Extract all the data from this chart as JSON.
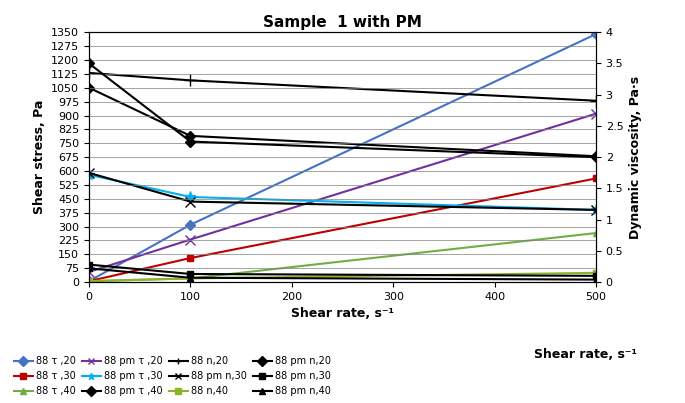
{
  "title": "Sample  1 with PM",
  "xlabel": "Shear rate, s⁻¹",
  "ylabel_left": "Shear stress, Pa",
  "ylabel_right": "Dynamic viscosity, Pa·s",
  "ylim_left": [
    0,
    1350
  ],
  "ylim_right": [
    0,
    4
  ],
  "yticks_left": [
    0,
    75,
    150,
    225,
    300,
    375,
    450,
    525,
    600,
    675,
    750,
    825,
    900,
    975,
    1050,
    1125,
    1200,
    1275,
    1350
  ],
  "yticks_right": [
    0,
    0.5,
    1.0,
    1.5,
    2.0,
    2.5,
    3.0,
    3.5,
    4.0
  ],
  "xticks": [
    0,
    100,
    200,
    300,
    400,
    500
  ],
  "xlim": [
    0,
    500
  ],
  "series": [
    {
      "label": "88 τ ,20",
      "x": [
        0,
        100,
        500
      ],
      "y": [
        5,
        310,
        1340
      ],
      "color": "#4472C4",
      "marker": "D",
      "markersize": 5,
      "linewidth": 1.5,
      "axis": "left"
    },
    {
      "label": "88 τ ,30",
      "x": [
        0,
        100,
        500
      ],
      "y": [
        5,
        130,
        560
      ],
      "color": "#C00000",
      "marker": "s",
      "markersize": 5,
      "linewidth": 1.5,
      "axis": "left"
    },
    {
      "label": "88 τ ,40",
      "x": [
        0,
        100,
        500
      ],
      "y": [
        5,
        20,
        265
      ],
      "color": "#70AD47",
      "marker": "^",
      "markersize": 5,
      "linewidth": 1.5,
      "axis": "left"
    },
    {
      "label": "88 pm τ ,20",
      "x": [
        0,
        100,
        500
      ],
      "y": [
        55,
        230,
        910
      ],
      "color": "#7030A0",
      "marker": "x",
      "markersize": 7,
      "linewidth": 1.5,
      "axis": "left"
    },
    {
      "label": "88 pm τ ,30",
      "x": [
        0,
        100,
        500
      ],
      "y": [
        580,
        460,
        390
      ],
      "color": "#00B0F0",
      "marker": "*",
      "markersize": 8,
      "linewidth": 1.5,
      "axis": "left"
    },
    {
      "label": "88 pm τ ,40",
      "x": [
        0,
        100,
        500
      ],
      "y": [
        1050,
        790,
        680
      ],
      "color": "#000000",
      "marker": "D",
      "markersize": 5,
      "linewidth": 1.5,
      "axis": "left"
    },
    {
      "label": "88 n,20",
      "x": [
        0,
        100,
        500
      ],
      "y": [
        1130,
        1090,
        980
      ],
      "color": "#000000",
      "marker": "+",
      "markersize": 8,
      "linewidth": 1.5,
      "axis": "left"
    },
    {
      "label": "88 pm n,30",
      "x": [
        0,
        100,
        500
      ],
      "y": [
        590,
        435,
        390
      ],
      "color": "#000000",
      "marker": "x",
      "markersize": 7,
      "linewidth": 1.5,
      "axis": "left"
    },
    {
      "label": "88 n,40",
      "x": [
        0,
        100,
        500
      ],
      "y": [
        5,
        20,
        50
      ],
      "color": "#8DB32A",
      "marker": "s",
      "markersize": 5,
      "linewidth": 1.5,
      "axis": "left"
    },
    {
      "label": "88 pm n,20",
      "x": [
        0,
        100,
        500
      ],
      "y": [
        3.5,
        2.25,
        2.0
      ],
      "color": "#000000",
      "marker": "D",
      "markersize": 5,
      "linewidth": 1.5,
      "axis": "right"
    },
    {
      "label": "88 pm n,30",
      "x": [
        0,
        100,
        500
      ],
      "y": [
        0.28,
        0.13,
        0.1
      ],
      "color": "#000000",
      "marker": "s",
      "markersize": 5,
      "linewidth": 1.5,
      "axis": "right"
    },
    {
      "label": "88 pm n,40",
      "x": [
        0,
        100,
        500
      ],
      "y": [
        0.22,
        0.07,
        0.04
      ],
      "color": "#000000",
      "marker": "^",
      "markersize": 5,
      "linewidth": 1.5,
      "axis": "right"
    }
  ],
  "legend_data": [
    {
      "label": "88 τ ,20",
      "color": "#4472C4",
      "marker": "D"
    },
    {
      "label": "88 τ ,30",
      "color": "#C00000",
      "marker": "s"
    },
    {
      "label": "88 τ ,40",
      "color": "#70AD47",
      "marker": "^"
    },
    {
      "label": "88 pm τ ,20",
      "color": "#7030A0",
      "marker": "x"
    },
    {
      "label": "88 pm τ ,30",
      "color": "#00B0F0",
      "marker": "*"
    },
    {
      "label": "88 pm τ ,40",
      "color": "#000000",
      "marker": "D"
    },
    {
      "label": "88 n,20",
      "color": "#000000",
      "marker": "+"
    },
    {
      "label": "88 pm n,30",
      "color": "#000000",
      "marker": "x"
    },
    {
      "label": "88 n,40",
      "color": "#8DB32A",
      "marker": "s"
    },
    {
      "label": "88 pm n,20",
      "color": "#000000",
      "marker": "D"
    },
    {
      "label": "88 pm n,30",
      "color": "#000000",
      "marker": "s"
    },
    {
      "label": "88 pm n,40",
      "color": "#000000",
      "marker": "^"
    }
  ],
  "title_fontsize": 11,
  "axis_label_fontsize": 9,
  "tick_fontsize": 8,
  "legend_fontsize": 7
}
